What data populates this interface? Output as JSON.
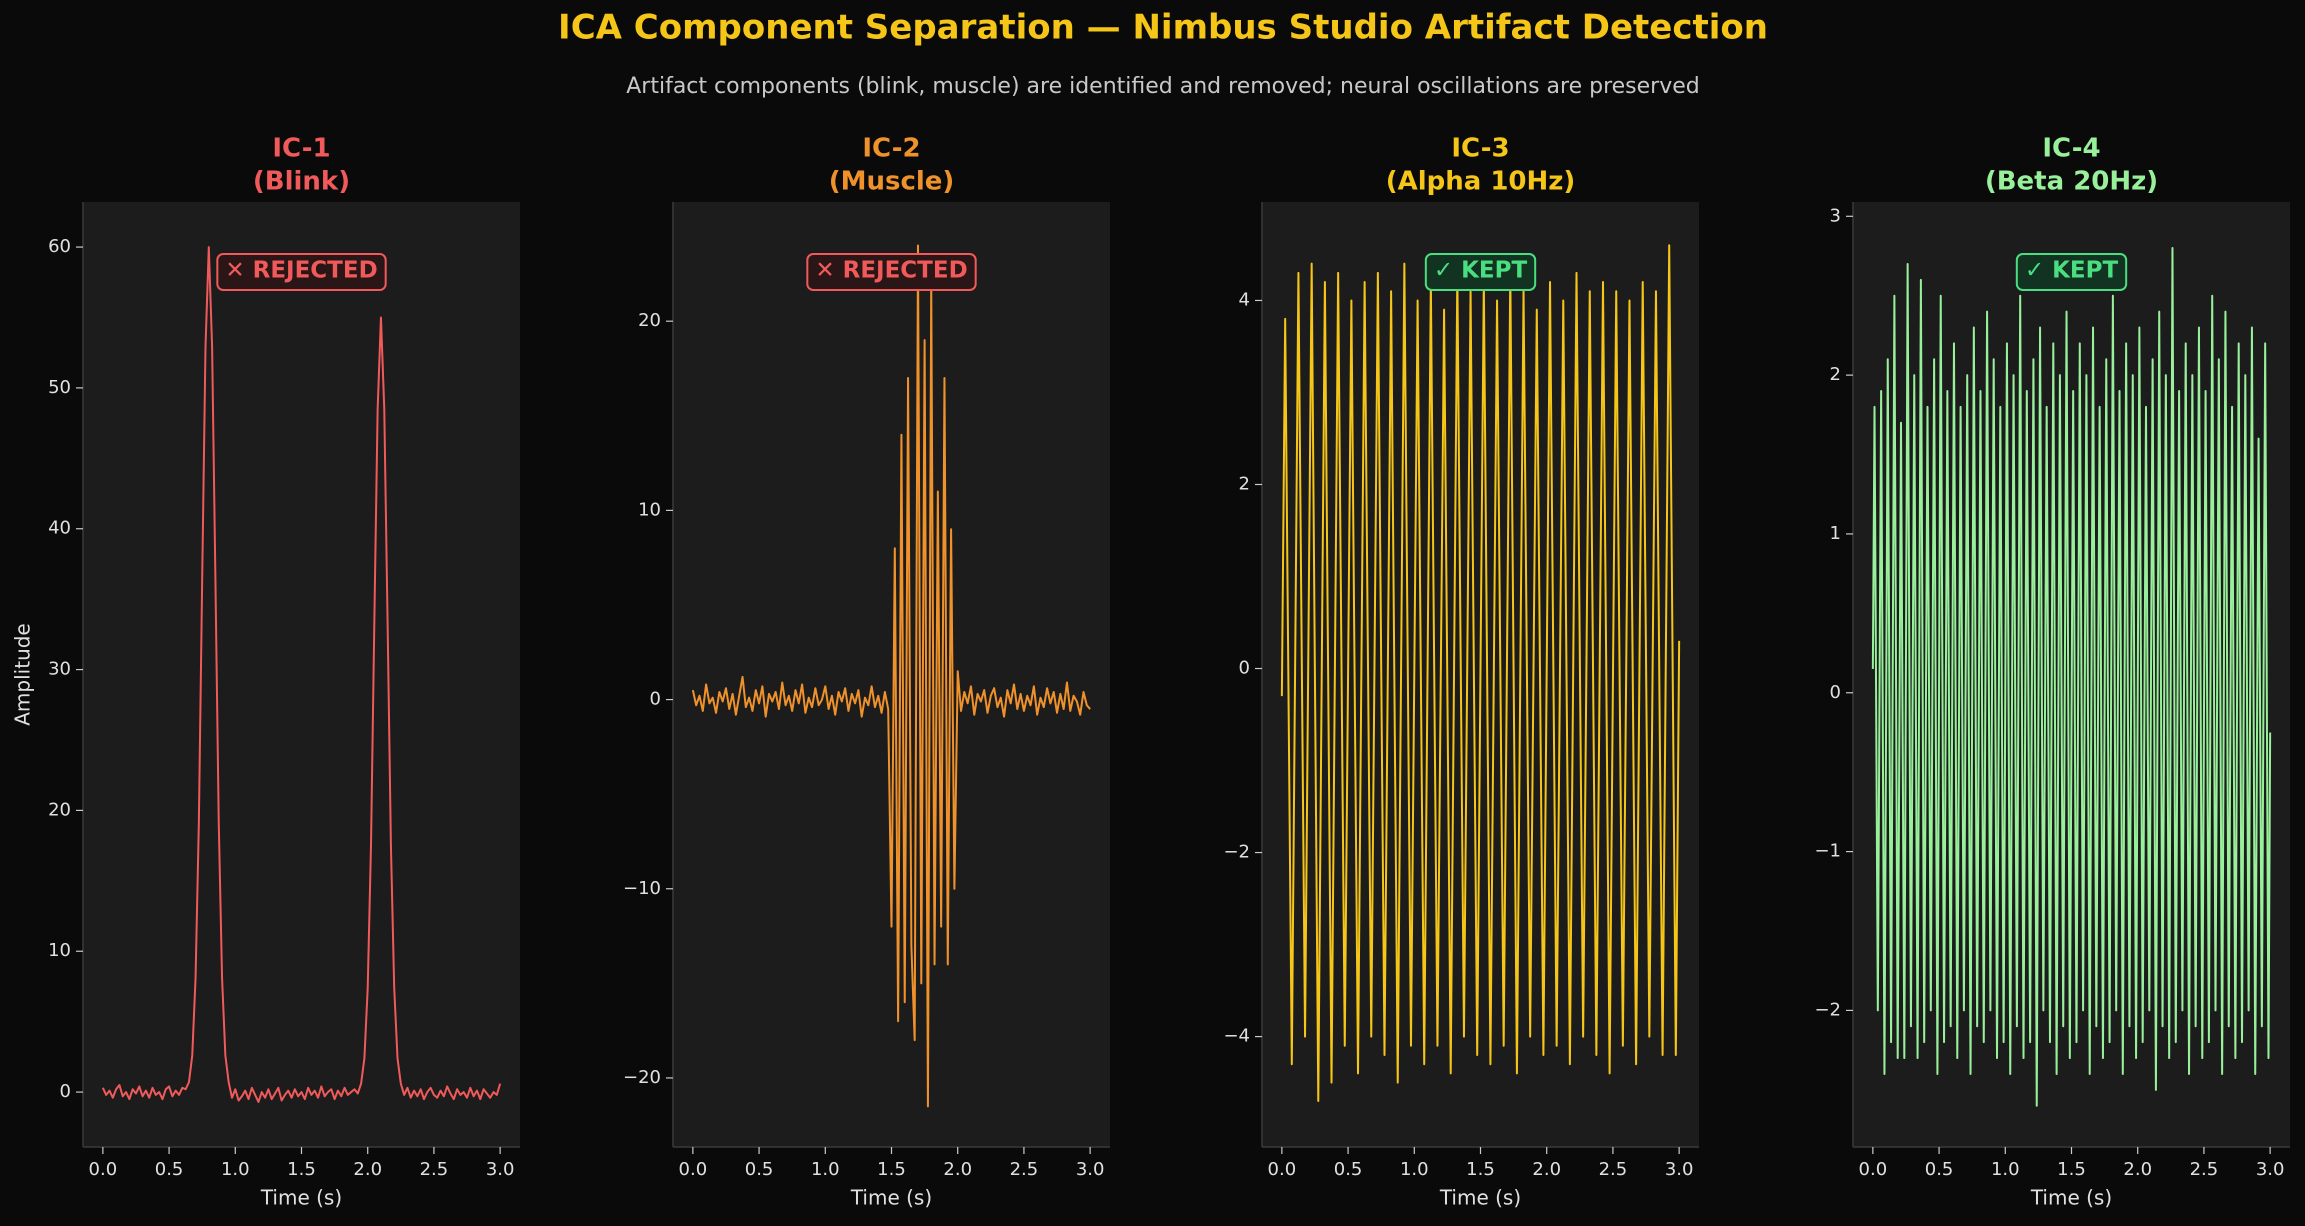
{
  "title": "ICA Component Separation — Nimbus Studio Artifact Detection",
  "subtitle": "Artifact components (blink, muscle) are identified and removed; neural oscillations are preserved",
  "chart_data": [
    {
      "type": "line",
      "title": "IC-1",
      "subtitle": "(Blink)",
      "annotation": "✕ REJECTED",
      "annotation_color": "#f05a5a",
      "xlabel": "Time (s)",
      "ylabel": "Amplitude",
      "color": "#f05a5a",
      "xlim": [
        -0.15,
        3.15
      ],
      "ylim": [
        -3.9,
        63.2
      ],
      "xticks": [
        {
          "value": 0,
          "label": "0.0"
        },
        0.5,
        {
          "value": 1,
          "label": "1.0"
        },
        1.5,
        {
          "value": 2,
          "label": "2.0"
        },
        2.5,
        {
          "value": 3,
          "label": "3.0"
        }
      ],
      "yticks": [
        0,
        10,
        20,
        30,
        40,
        50,
        60
      ],
      "x": [
        0,
        0.025,
        0.05,
        0.075,
        0.1,
        0.125,
        0.15,
        0.175,
        0.2,
        0.225,
        0.25,
        0.275,
        0.3,
        0.325,
        0.35,
        0.375,
        0.4,
        0.425,
        0.45,
        0.475,
        0.5,
        0.525,
        0.55,
        0.575,
        0.6,
        0.625,
        0.65,
        0.675,
        0.7,
        0.725,
        0.75,
        0.775,
        0.8,
        0.825,
        0.85,
        0.875,
        0.9,
        0.925,
        0.95,
        0.975,
        1,
        1.025,
        1.05,
        1.075,
        1.1,
        1.125,
        1.15,
        1.175,
        1.2,
        1.225,
        1.25,
        1.275,
        1.3,
        1.325,
        1.35,
        1.375,
        1.4,
        1.425,
        1.45,
        1.475,
        1.5,
        1.525,
        1.55,
        1.575,
        1.6,
        1.625,
        1.65,
        1.675,
        1.7,
        1.725,
        1.75,
        1.775,
        1.8,
        1.825,
        1.85,
        1.875,
        1.9,
        1.925,
        1.95,
        1.975,
        2,
        2.025,
        2.05,
        2.075,
        2.1,
        2.125,
        2.15,
        2.175,
        2.2,
        2.225,
        2.25,
        2.275,
        2.3,
        2.325,
        2.35,
        2.375,
        2.4,
        2.425,
        2.45,
        2.475,
        2.5,
        2.525,
        2.55,
        2.575,
        2.6,
        2.625,
        2.65,
        2.675,
        2.7,
        2.725,
        2.75,
        2.775,
        2.8,
        2.825,
        2.85,
        2.875,
        2.9,
        2.925,
        2.95,
        2.975,
        3
      ],
      "values": [
        0.3,
        -0.2,
        0.1,
        -0.4,
        0.2,
        0.5,
        -0.3,
        0.0,
        -0.5,
        0.2,
        -0.1,
        0.4,
        -0.3,
        0.1,
        -0.4,
        0.3,
        -0.2,
        0.0,
        -0.5,
        0.2,
        0.4,
        -0.3,
        0.1,
        -0.2,
        0.3,
        0.2,
        0.7,
        2.6,
        8.1,
        19.2,
        36.4,
        52.9,
        60,
        52.9,
        36.4,
        19.2,
        8.1,
        2.6,
        0.7,
        -0.4,
        0.2,
        -0.6,
        -0.3,
        0.1,
        -0.5,
        0.3,
        -0.2,
        -0.7,
        0.0,
        -0.4,
        0.2,
        -0.5,
        -0.1,
        0.3,
        -0.6,
        -0.2,
        0.1,
        -0.4,
        0.2,
        -0.3,
        0.0,
        -0.5,
        0.3,
        -0.2,
        0.1,
        -0.4,
        0.4,
        -0.3,
        0.0,
        0.2,
        -0.5,
        0.1,
        -0.3,
        0.3,
        -0.2,
        0.0,
        0.2,
        -0.1,
        0.6,
        2.4,
        7.4,
        17.6,
        33.4,
        48.5,
        55,
        48.5,
        33.4,
        17.6,
        7.4,
        2.4,
        0.6,
        -0.2,
        0.3,
        -0.4,
        0.1,
        -0.3,
        0.2,
        -0.5,
        0.0,
        0.3,
        -0.2,
        -0.4,
        0.1,
        -0.3,
        0.4,
        -0.1,
        -0.5,
        0.2,
        -0.2,
        0.0,
        -0.4,
        0.3,
        -0.3,
        0.1,
        -0.5,
        0.2,
        -0.1,
        -0.4,
        0.0,
        -0.2,
        0.6
      ]
    },
    {
      "type": "line",
      "title": "IC-2",
      "subtitle": "(Muscle)",
      "annotation": "✕ REJECTED",
      "annotation_color": "#f05a5a",
      "xlabel": "Time (s)",
      "color": "#f0922b",
      "xlim": [
        -0.15,
        3.15
      ],
      "ylim": [
        -23.65,
        26.3
      ],
      "xticks": [
        {
          "value": 0,
          "label": "0.0"
        },
        0.5,
        {
          "value": 1,
          "label": "1.0"
        },
        1.5,
        {
          "value": 2,
          "label": "2.0"
        },
        2.5,
        {
          "value": 3,
          "label": "3.0"
        }
      ],
      "yticks": [
        {
          "value": -20,
          "label": "−20"
        },
        {
          "value": -10,
          "label": "−10"
        },
        0,
        10,
        20
      ],
      "x": [
        0,
        0.025,
        0.05,
        0.075,
        0.1,
        0.125,
        0.15,
        0.175,
        0.2,
        0.225,
        0.25,
        0.275,
        0.3,
        0.325,
        0.35,
        0.375,
        0.4,
        0.425,
        0.45,
        0.475,
        0.5,
        0.525,
        0.55,
        0.575,
        0.6,
        0.625,
        0.65,
        0.675,
        0.7,
        0.725,
        0.75,
        0.775,
        0.8,
        0.825,
        0.85,
        0.875,
        0.9,
        0.925,
        0.95,
        0.975,
        1,
        1.025,
        1.05,
        1.075,
        1.1,
        1.125,
        1.15,
        1.175,
        1.2,
        1.225,
        1.25,
        1.275,
        1.3,
        1.325,
        1.35,
        1.375,
        1.4,
        1.425,
        1.45,
        1.475,
        1.5,
        1.525,
        1.55,
        1.575,
        1.6,
        1.625,
        1.65,
        1.675,
        1.7,
        1.725,
        1.75,
        1.775,
        1.8,
        1.825,
        1.85,
        1.875,
        1.9,
        1.925,
        1.95,
        1.975,
        2,
        2.025,
        2.05,
        2.075,
        2.1,
        2.125,
        2.15,
        2.175,
        2.2,
        2.225,
        2.25,
        2.275,
        2.3,
        2.325,
        2.35,
        2.375,
        2.4,
        2.425,
        2.45,
        2.475,
        2.5,
        2.525,
        2.55,
        2.575,
        2.6,
        2.625,
        2.65,
        2.675,
        2.7,
        2.725,
        2.75,
        2.775,
        2.8,
        2.825,
        2.85,
        2.875,
        2.9,
        2.925,
        2.95,
        2.975,
        3
      ],
      "values": [
        0.5,
        -0.3,
        0.2,
        -0.6,
        0.8,
        -0.2,
        0.1,
        -0.7,
        0.4,
        -0.1,
        0.6,
        -0.5,
        0.3,
        -0.8,
        0.2,
        1.2,
        -0.4,
        0.1,
        -0.6,
        0.5,
        -0.2,
        0.7,
        -0.9,
        0.3,
        -0.1,
        0.4,
        -0.5,
        0.9,
        -0.3,
        0.2,
        -0.6,
        0.5,
        -0.2,
        0.8,
        -0.7,
        0.1,
        -0.4,
        0.6,
        -0.3,
        0.0,
        0.7,
        -0.5,
        0.2,
        -0.8,
        0.4,
        -0.1,
        0.6,
        -0.6,
        0.3,
        -0.2,
        0.5,
        -0.9,
        0.1,
        -0.3,
        0.7,
        -0.4,
        0.2,
        -0.7,
        0.4,
        -0.5,
        -12,
        8,
        -17,
        14,
        -16,
        17,
        -13,
        -18,
        24,
        -15,
        19,
        -21.5,
        22,
        -14,
        11,
        -12,
        17,
        -14,
        9,
        -10,
        1.5,
        -0.6,
        0.4,
        -0.2,
        0.7,
        -0.8,
        0.3,
        -0.1,
        0.5,
        -0.7,
        0.2,
        0.6,
        -0.4,
        0.1,
        -0.9,
        0.5,
        -0.2,
        0.8,
        -0.5,
        0.3,
        -0.6,
        0.2,
        -0.3,
        0.7,
        -0.8,
        0.1,
        -0.4,
        0.6,
        -0.2,
        0.4,
        -0.7,
        0.3,
        -0.5,
        0.9,
        -0.6,
        0.2,
        -0.1,
        -0.8,
        0.4,
        -0.3,
        -0.5
      ]
    },
    {
      "type": "line",
      "title": "IC-3",
      "subtitle": "(Alpha 10Hz)",
      "annotation": "✓ KEPT",
      "annotation_color": "#4ade80",
      "xlabel": "Time (s)",
      "color": "#f5c518",
      "xlim": [
        -0.15,
        3.15
      ],
      "ylim": [
        -5.2,
        5.07
      ],
      "xticks": [
        {
          "value": 0,
          "label": "0.0"
        },
        0.5,
        {
          "value": 1,
          "label": "1.0"
        },
        1.5,
        {
          "value": 2,
          "label": "2.0"
        },
        2.5,
        {
          "value": 3,
          "label": "3.0"
        }
      ],
      "yticks": [
        {
          "value": -4,
          "label": "−4"
        },
        {
          "value": -2,
          "label": "−2"
        },
        0,
        2,
        4
      ],
      "x": [
        0,
        0.025,
        0.075,
        0.125,
        0.175,
        0.225,
        0.275,
        0.325,
        0.375,
        0.425,
        0.475,
        0.525,
        0.575,
        0.625,
        0.675,
        0.725,
        0.775,
        0.825,
        0.875,
        0.925,
        0.975,
        1.025,
        1.075,
        1.125,
        1.175,
        1.225,
        1.275,
        1.325,
        1.375,
        1.425,
        1.475,
        1.525,
        1.575,
        1.625,
        1.675,
        1.725,
        1.775,
        1.825,
        1.875,
        1.925,
        1.975,
        2.025,
        2.075,
        2.125,
        2.175,
        2.225,
        2.275,
        2.325,
        2.375,
        2.425,
        2.475,
        2.525,
        2.575,
        2.625,
        2.675,
        2.725,
        2.775,
        2.825,
        2.875,
        2.925,
        2.975,
        3
      ],
      "values": [
        -0.3,
        3.8,
        -4.3,
        4.3,
        -4.0,
        4.4,
        -4.7,
        4.2,
        -4.5,
        4.3,
        -4.1,
        4.0,
        -4.4,
        4.2,
        -4.0,
        4.3,
        -4.2,
        4.1,
        -4.5,
        4.4,
        -4.1,
        4.0,
        -4.3,
        4.2,
        -4.1,
        3.9,
        -4.4,
        4.3,
        -4.0,
        4.1,
        -4.2,
        4.2,
        -4.3,
        4.0,
        -4.1,
        4.3,
        -4.4,
        4.1,
        -4.0,
        3.9,
        -4.2,
        4.2,
        -4.1,
        4.0,
        -4.3,
        4.3,
        -4.0,
        4.1,
        -4.2,
        4.2,
        -4.4,
        4.1,
        -4.1,
        4.0,
        -4.3,
        4.2,
        -4.0,
        4.1,
        -4.2,
        4.6,
        -4.2,
        0.3
      ]
    },
    {
      "type": "line",
      "title": "IC-4",
      "subtitle": "(Beta 20Hz)",
      "annotation": "✓ KEPT",
      "annotation_color": "#4ade80",
      "xlabel": "Time (s)",
      "color": "#98f09a",
      "xlim": [
        -0.15,
        3.15
      ],
      "ylim": [
        -2.86,
        3.09
      ],
      "xticks": [
        {
          "value": 0,
          "label": "0.0"
        },
        0.5,
        {
          "value": 1,
          "label": "1.0"
        },
        1.5,
        {
          "value": 2,
          "label": "2.0"
        },
        2.5,
        {
          "value": 3,
          "label": "3.0"
        }
      ],
      "yticks": [
        {
          "value": -2,
          "label": "−2"
        },
        {
          "value": -1,
          "label": "−1"
        },
        0,
        1,
        2,
        3
      ],
      "x": [
        0,
        0.0125,
        0.0375,
        0.0625,
        0.0875,
        0.1125,
        0.1375,
        0.1625,
        0.1875,
        0.2125,
        0.2375,
        0.2625,
        0.2875,
        0.3125,
        0.3375,
        0.3625,
        0.3875,
        0.4125,
        0.4375,
        0.4625,
        0.4875,
        0.5125,
        0.5375,
        0.5625,
        0.5875,
        0.6125,
        0.6375,
        0.6625,
        0.6875,
        0.7125,
        0.7375,
        0.7625,
        0.7875,
        0.8125,
        0.8375,
        0.8625,
        0.8875,
        0.9125,
        0.9375,
        0.9625,
        0.9875,
        1.0125,
        1.0375,
        1.0625,
        1.0875,
        1.1125,
        1.1375,
        1.1625,
        1.1875,
        1.2125,
        1.2375,
        1.2625,
        1.2875,
        1.3125,
        1.3375,
        1.3625,
        1.3875,
        1.4125,
        1.4375,
        1.4625,
        1.4875,
        1.5125,
        1.5375,
        1.5625,
        1.5875,
        1.6125,
        1.6375,
        1.6625,
        1.6875,
        1.7125,
        1.7375,
        1.7625,
        1.7875,
        1.8125,
        1.8375,
        1.8625,
        1.8875,
        1.9125,
        1.9375,
        1.9625,
        1.9875,
        2.0125,
        2.0375,
        2.0625,
        2.0875,
        2.1125,
        2.1375,
        2.1625,
        2.1875,
        2.2125,
        2.2375,
        2.2625,
        2.2875,
        2.3125,
        2.3375,
        2.3625,
        2.3875,
        2.4125,
        2.4375,
        2.4625,
        2.4875,
        2.5125,
        2.5375,
        2.5625,
        2.5875,
        2.6125,
        2.6375,
        2.6625,
        2.6875,
        2.7125,
        2.7375,
        2.7625,
        2.7875,
        2.8125,
        2.8375,
        2.8625,
        2.8875,
        2.9125,
        2.9375,
        2.9625,
        2.9875,
        3
      ],
      "values": [
        0.15,
        1.8,
        -2.0,
        1.9,
        -2.4,
        2.1,
        -2.2,
        2.5,
        -2.3,
        1.7,
        -2.3,
        2.7,
        -2.1,
        2.0,
        -2.3,
        2.6,
        -2.2,
        1.8,
        -2.0,
        2.1,
        -2.4,
        2.5,
        -2.2,
        1.9,
        -2.1,
        2.2,
        -2.3,
        1.8,
        -2.0,
        2.0,
        -2.4,
        2.3,
        -2.1,
        1.9,
        -2.2,
        2.4,
        -2.0,
        2.1,
        -2.3,
        1.8,
        -2.2,
        2.2,
        -2.4,
        2.0,
        -2.1,
        2.5,
        -2.3,
        1.9,
        -2.2,
        2.1,
        -2.6,
        2.3,
        -2.0,
        1.8,
        -2.2,
        2.2,
        -2.4,
        2.0,
        -2.1,
        2.4,
        -2.3,
        1.9,
        -2.2,
        2.2,
        -2.0,
        2.0,
        -2.4,
        2.3,
        -2.1,
        1.8,
        -2.3,
        2.1,
        -2.2,
        2.5,
        -2.0,
        1.9,
        -2.4,
        2.2,
        -2.1,
        2.0,
        -2.3,
        2.3,
        -2.2,
        1.8,
        -2.0,
        2.1,
        -2.5,
        2.4,
        -2.1,
        2.0,
        -2.3,
        2.8,
        -2.2,
        1.9,
        -2.0,
        2.2,
        -2.4,
        2.0,
        -2.1,
        2.3,
        -2.3,
        1.9,
        -2.2,
        2.5,
        -2.0,
        2.1,
        -2.4,
        2.4,
        -2.1,
        1.8,
        -2.3,
        2.2,
        -2.2,
        2.0,
        -2.0,
        2.3,
        -2.4,
        1.6,
        -2.1,
        2.2,
        -2.3,
        -0.25
      ]
    }
  ]
}
